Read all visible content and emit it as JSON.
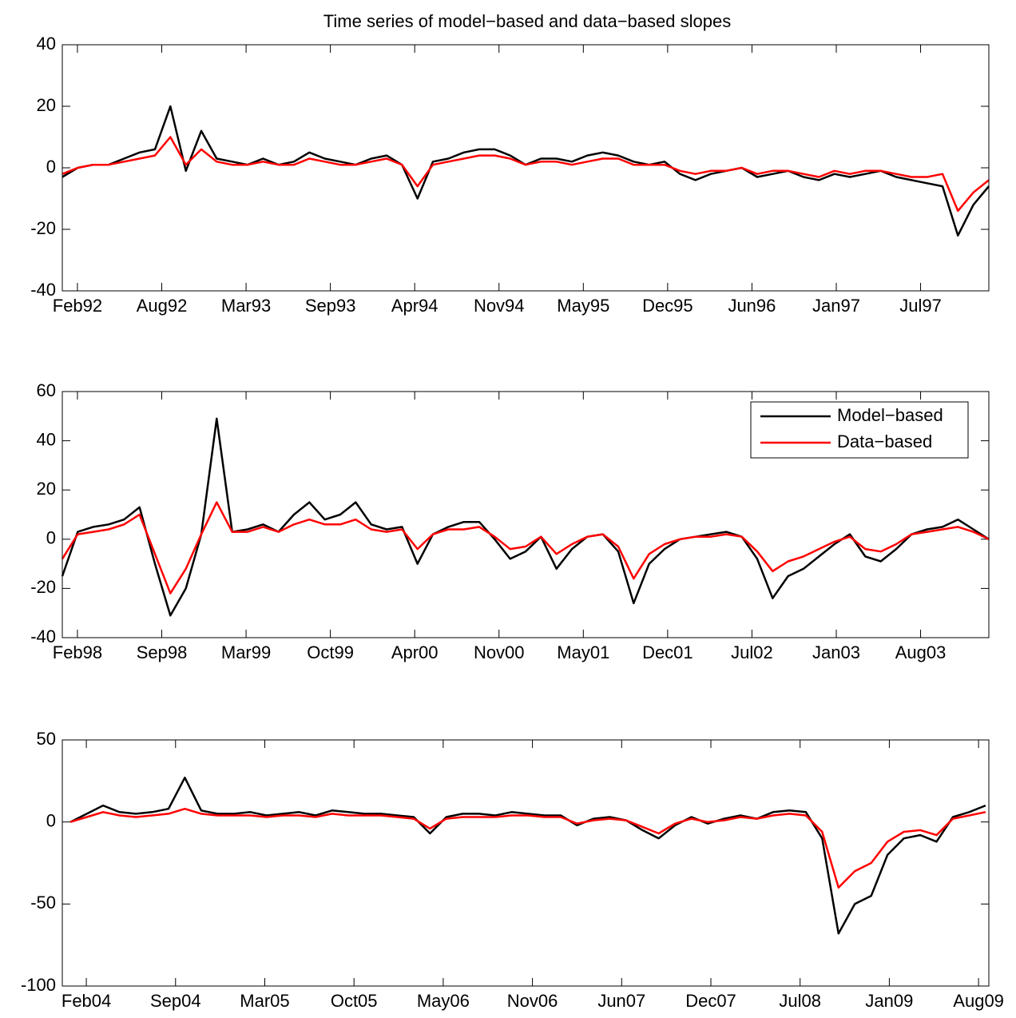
{
  "chart_data": [
    {
      "type": "line",
      "title": "Time series of model−based and data−based slopes",
      "x": [
        1992.0,
        1992.1,
        1992.2,
        1992.3,
        1992.4,
        1992.5,
        1992.6,
        1992.7,
        1992.8,
        1992.9,
        1993.0,
        1993.1,
        1993.2,
        1993.3,
        1993.4,
        1993.5,
        1993.6,
        1993.7,
        1993.8,
        1993.9,
        1994.0,
        1994.1,
        1994.2,
        1994.3,
        1994.4,
        1994.5,
        1994.6,
        1994.7,
        1994.8,
        1994.9,
        1995.0,
        1995.1,
        1995.2,
        1995.3,
        1995.4,
        1995.5,
        1995.6,
        1995.7,
        1995.8,
        1995.9,
        1996.0,
        1996.1,
        1996.2,
        1996.3,
        1996.4,
        1996.5,
        1996.6,
        1996.7,
        1996.8,
        1996.9,
        1997.0,
        1997.1,
        1997.2,
        1997.3,
        1997.4,
        1997.5,
        1997.6,
        1997.7,
        1997.8,
        1997.9,
        1998.0
      ],
      "series": [
        {
          "color": "#000000",
          "values": [
            -3,
            0,
            1,
            1,
            3,
            5,
            6,
            20,
            -1,
            12,
            3,
            2,
            1,
            3,
            1,
            2,
            5,
            3,
            2,
            1,
            3,
            4,
            1,
            -10,
            2,
            3,
            5,
            6,
            6,
            4,
            1,
            3,
            3,
            2,
            4,
            5,
            4,
            2,
            1,
            2,
            -2,
            -4,
            -2,
            -1,
            0,
            -3,
            -2,
            -1,
            -3,
            -4,
            -2,
            -3,
            -2,
            -1,
            -3,
            -4,
            -5,
            -6,
            -22,
            -12,
            -6
          ]
        },
        {
          "color": "#ff0000",
          "values": [
            -2,
            0,
            1,
            1,
            2,
            3,
            4,
            10,
            1,
            6,
            2,
            1,
            1,
            2,
            1,
            1,
            3,
            2,
            1,
            1,
            2,
            3,
            1,
            -6,
            1,
            2,
            3,
            4,
            4,
            3,
            1,
            2,
            2,
            1,
            2,
            3,
            3,
            1,
            1,
            1,
            -1,
            -2,
            -1,
            -1,
            0,
            -2,
            -1,
            -1,
            -2,
            -3,
            -1,
            -2,
            -1,
            -1,
            -2,
            -3,
            -3,
            -2,
            -14,
            -8,
            -4
          ]
        }
      ],
      "xlim": [
        1992.0,
        1998.0
      ],
      "xticks": [
        {
          "value": 1992.098,
          "label": "Feb92"
        },
        {
          "value": 1992.644,
          "label": "Aug92"
        },
        {
          "value": 1993.19,
          "label": "Mar93"
        },
        {
          "value": 1993.736,
          "label": "Sep93"
        },
        {
          "value": 1994.282,
          "label": "Apr94"
        },
        {
          "value": 1994.828,
          "label": "Nov94"
        },
        {
          "value": 1995.374,
          "label": "May95"
        },
        {
          "value": 1995.92,
          "label": "Dec95"
        },
        {
          "value": 1996.466,
          "label": "Jun96"
        },
        {
          "value": 1997.012,
          "label": "Jan97"
        },
        {
          "value": 1997.558,
          "label": "Jul97"
        }
      ],
      "ylim": [
        -40,
        40
      ],
      "yticks": [
        -40,
        -20,
        0,
        20,
        40
      ]
    },
    {
      "type": "line",
      "x": [
        1998.0,
        1998.1,
        1998.2,
        1998.3,
        1998.4,
        1998.5,
        1998.6,
        1998.7,
        1998.8,
        1998.9,
        1999.0,
        1999.1,
        1999.2,
        1999.3,
        1999.4,
        1999.5,
        1999.6,
        1999.7,
        1999.8,
        1999.9,
        2000.0,
        2000.1,
        2000.2,
        2000.3,
        2000.4,
        2000.5,
        2000.6,
        2000.7,
        2000.8,
        2000.9,
        2001.0,
        2001.1,
        2001.2,
        2001.3,
        2001.4,
        2001.5,
        2001.6,
        2001.7,
        2001.8,
        2001.9,
        2002.0,
        2002.1,
        2002.2,
        2002.3,
        2002.4,
        2002.5,
        2002.6,
        2002.7,
        2002.8,
        2002.9,
        2003.0,
        2003.1,
        2003.2,
        2003.3,
        2003.4,
        2003.5,
        2003.6,
        2003.7,
        2003.8,
        2003.9,
        2004.0
      ],
      "series": [
        {
          "name": "Model−based",
          "color": "#000000",
          "values": [
            -15,
            3,
            5,
            6,
            8,
            13,
            -10,
            -31,
            -20,
            2,
            49,
            3,
            4,
            6,
            3,
            10,
            15,
            8,
            10,
            15,
            6,
            4,
            5,
            -10,
            2,
            5,
            7,
            7,
            0,
            -8,
            -5,
            1,
            -12,
            -4,
            1,
            2,
            -5,
            -26,
            -10,
            -4,
            0,
            1,
            2,
            3,
            1,
            -8,
            -24,
            -15,
            -12,
            -7,
            -2,
            2,
            -7,
            -9,
            -4,
            2,
            4,
            5,
            8,
            4,
            0
          ]
        },
        {
          "name": "Data−based",
          "color": "#ff0000",
          "values": [
            -8,
            2,
            3,
            4,
            6,
            10,
            -6,
            -22,
            -12,
            2,
            15,
            3,
            3,
            5,
            3,
            6,
            8,
            6,
            6,
            8,
            4,
            3,
            4,
            -4,
            2,
            4,
            4,
            5,
            1,
            -4,
            -3,
            1,
            -6,
            -2,
            1,
            2,
            -3,
            -16,
            -6,
            -2,
            0,
            1,
            1,
            2,
            1,
            -5,
            -13,
            -9,
            -7,
            -4,
            -1,
            1,
            -4,
            -5,
            -2,
            2,
            3,
            4,
            5,
            3,
            0
          ]
        }
      ],
      "xlim": [
        1998.0,
        2004.0
      ],
      "xticks": [
        {
          "value": 1998.098,
          "label": "Feb98"
        },
        {
          "value": 1998.644,
          "label": "Sep98"
        },
        {
          "value": 1999.19,
          "label": "Mar99"
        },
        {
          "value": 1999.736,
          "label": "Oct99"
        },
        {
          "value": 2000.282,
          "label": "Apr00"
        },
        {
          "value": 2000.828,
          "label": "Nov00"
        },
        {
          "value": 2001.374,
          "label": "May01"
        },
        {
          "value": 2001.92,
          "label": "Dec01"
        },
        {
          "value": 2002.466,
          "label": "Jul02"
        },
        {
          "value": 2003.012,
          "label": "Jan03"
        },
        {
          "value": 2003.558,
          "label": "Aug03"
        }
      ],
      "ylim": [
        -40,
        60
      ],
      "yticks": [
        -40,
        -20,
        0,
        20,
        40,
        60
      ],
      "legend": "upper right"
    },
    {
      "type": "line",
      "x": [
        2004.0,
        2004.1,
        2004.2,
        2004.3,
        2004.4,
        2004.5,
        2004.6,
        2004.7,
        2004.8,
        2004.9,
        2005.0,
        2005.1,
        2005.2,
        2005.3,
        2005.4,
        2005.5,
        2005.6,
        2005.7,
        2005.8,
        2005.9,
        2006.0,
        2006.1,
        2006.2,
        2006.3,
        2006.4,
        2006.5,
        2006.6,
        2006.7,
        2006.8,
        2006.9,
        2007.0,
        2007.1,
        2007.2,
        2007.3,
        2007.4,
        2007.5,
        2007.6,
        2007.7,
        2007.8,
        2007.9,
        2008.0,
        2008.1,
        2008.2,
        2008.3,
        2008.4,
        2008.5,
        2008.6,
        2008.7,
        2008.8,
        2008.9,
        2009.0,
        2009.1,
        2009.2,
        2009.3,
        2009.4,
        2009.5,
        2009.6
      ],
      "series": [
        {
          "color": "#000000",
          "values": [
            0,
            5,
            10,
            6,
            5,
            6,
            8,
            27,
            7,
            5,
            5,
            6,
            4,
            5,
            6,
            4,
            7,
            6,
            5,
            5,
            4,
            3,
            -7,
            3,
            5,
            5,
            4,
            6,
            5,
            4,
            4,
            -2,
            2,
            3,
            1,
            -5,
            -10,
            -2,
            3,
            -1,
            2,
            4,
            2,
            6,
            7,
            6,
            -10,
            -68,
            -50,
            -45,
            -20,
            -10,
            -8,
            -12,
            3,
            6,
            10
          ]
        },
        {
          "color": "#ff0000",
          "values": [
            0,
            3,
            6,
            4,
            3,
            4,
            5,
            8,
            5,
            4,
            4,
            4,
            3,
            4,
            4,
            3,
            5,
            4,
            4,
            4,
            3,
            2,
            -4,
            2,
            3,
            3,
            3,
            4,
            4,
            3,
            3,
            -1,
            1,
            2,
            1,
            -3,
            -7,
            -1,
            2,
            0,
            1,
            3,
            2,
            4,
            5,
            4,
            -6,
            -40,
            -30,
            -25,
            -12,
            -6,
            -5,
            -8,
            2,
            4,
            6
          ]
        }
      ],
      "xlim": [
        2003.95,
        2009.62
      ],
      "xticks": [
        {
          "value": 2004.097,
          "label": "Feb04"
        },
        {
          "value": 2004.643,
          "label": "Sep04"
        },
        {
          "value": 2005.189,
          "label": "Mar05"
        },
        {
          "value": 2005.735,
          "label": "Oct05"
        },
        {
          "value": 2006.281,
          "label": "May06"
        },
        {
          "value": 2006.827,
          "label": "Nov06"
        },
        {
          "value": 2007.373,
          "label": "Jun07"
        },
        {
          "value": 2007.919,
          "label": "Dec07"
        },
        {
          "value": 2008.465,
          "label": "Jul08"
        },
        {
          "value": 2009.011,
          "label": "Jan09"
        },
        {
          "value": 2009.557,
          "label": "Aug09"
        }
      ],
      "ylim": [
        -100,
        50
      ],
      "yticks": [
        -100,
        -50,
        0,
        50
      ]
    }
  ]
}
